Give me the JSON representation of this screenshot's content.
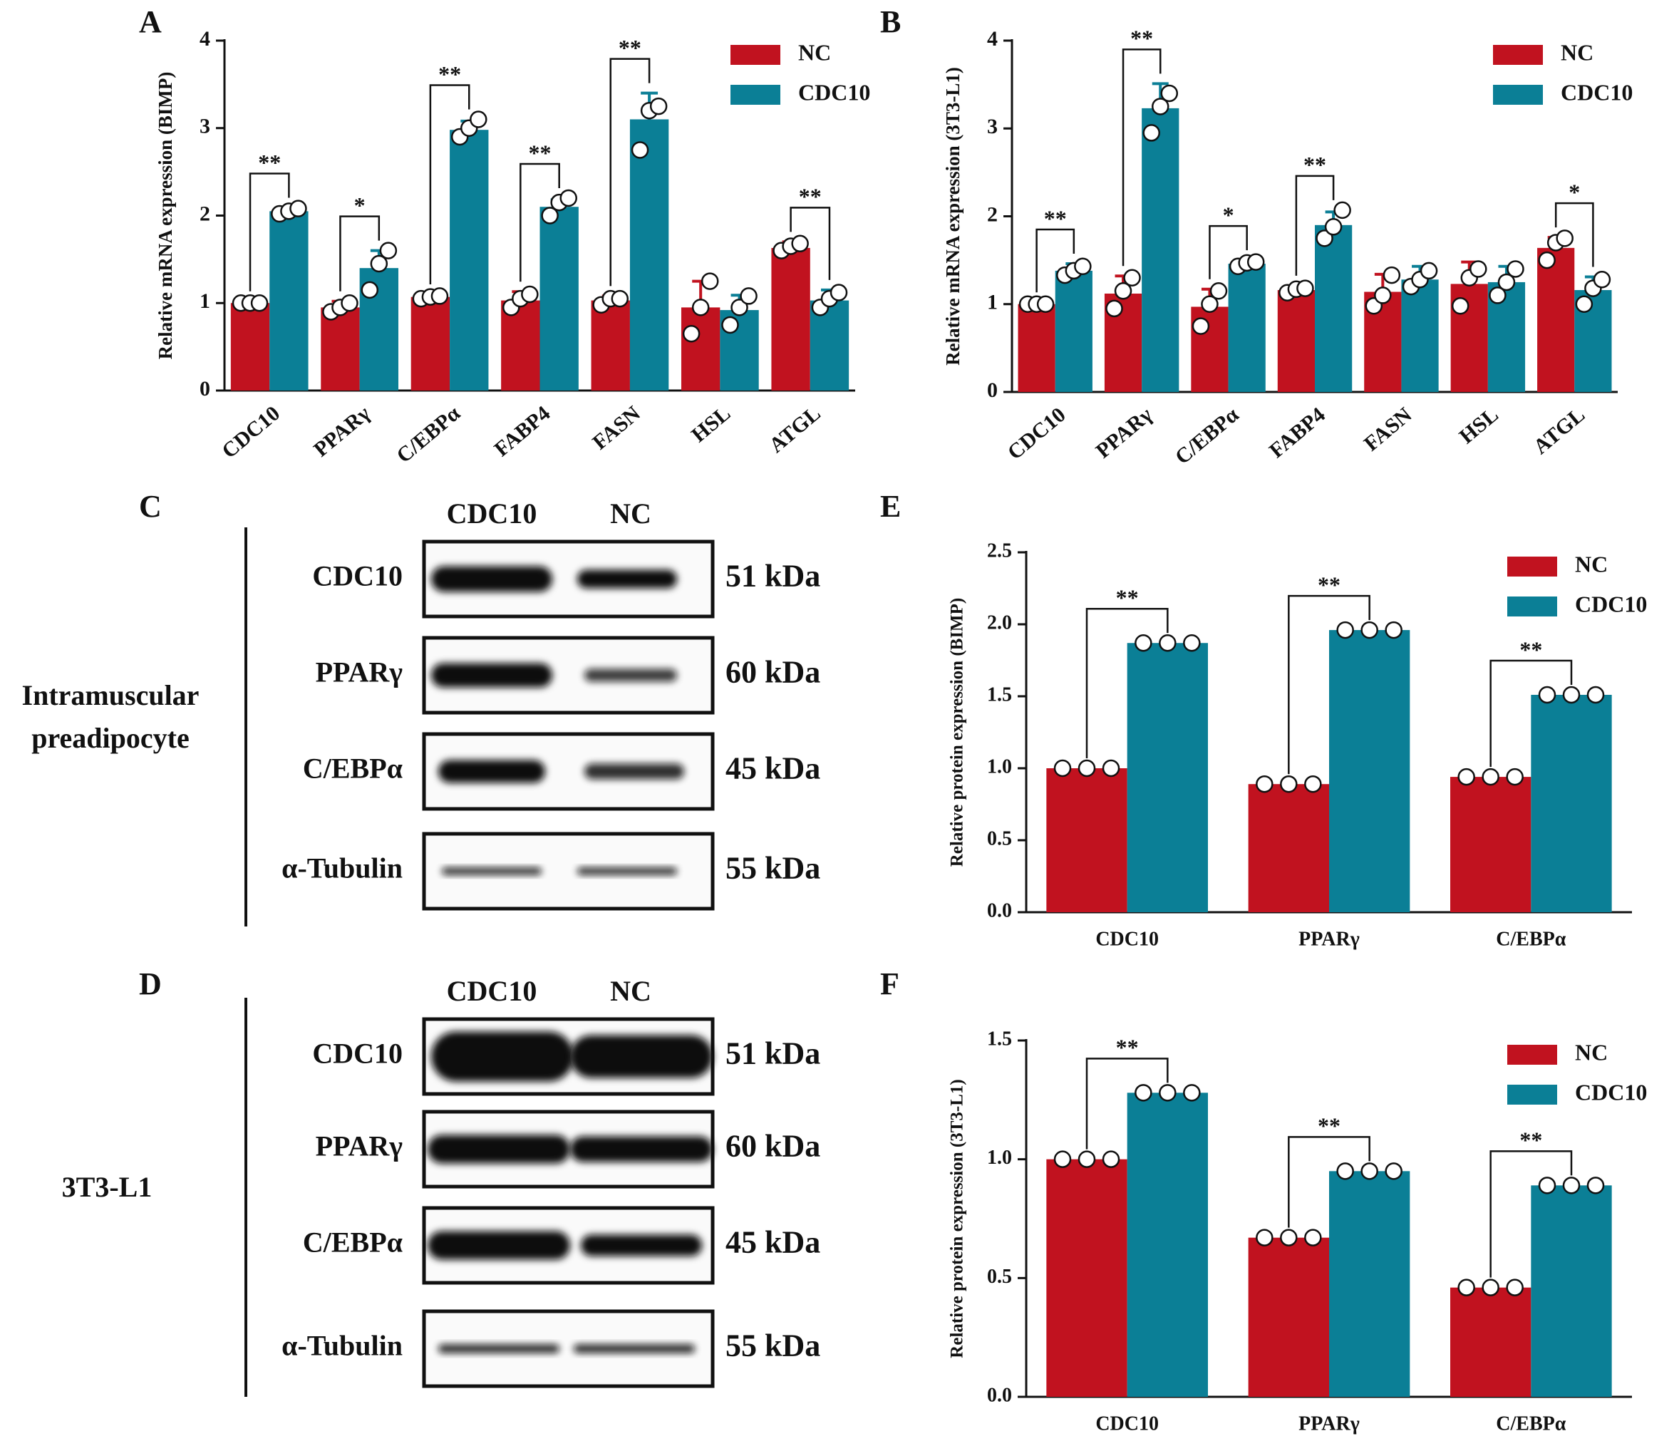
{
  "chart_data": [
    {
      "type": "bar",
      "panel": "A",
      "ylabel": "Relative mRNA  expression (BIMP)",
      "categories": [
        "CDC10",
        "PPARγ",
        "C/EBPα",
        "FABP4",
        "FASN",
        "HSL",
        "ATGL"
      ],
      "series": [
        {
          "name": "NC",
          "color": "#c1121f",
          "values": [
            1.0,
            0.95,
            1.07,
            1.03,
            1.03,
            0.95,
            1.63
          ],
          "errors": [
            0.02,
            0.07,
            0.03,
            0.1,
            0.05,
            0.3,
            0.07
          ],
          "points": [
            [
              1.0,
              1.0,
              1.0
            ],
            [
              0.9,
              0.95,
              1.0
            ],
            [
              1.05,
              1.07,
              1.08
            ],
            [
              0.95,
              1.05,
              1.1
            ],
            [
              0.98,
              1.05,
              1.05
            ],
            [
              0.65,
              0.95,
              1.25
            ],
            [
              1.6,
              1.65,
              1.68
            ]
          ]
        },
        {
          "name": "CDC10",
          "color": "#0b7f96",
          "values": [
            2.05,
            1.4,
            2.98,
            2.1,
            3.1,
            0.92,
            1.03
          ],
          "errors": [
            0.04,
            0.2,
            0.1,
            0.08,
            0.3,
            0.17,
            0.12
          ],
          "points": [
            [
              2.02,
              2.05,
              2.08
            ],
            [
              1.15,
              1.45,
              1.6
            ],
            [
              2.9,
              3.0,
              3.1
            ],
            [
              2.0,
              2.15,
              2.2
            ],
            [
              2.75,
              3.2,
              3.25
            ],
            [
              0.75,
              0.95,
              1.08
            ],
            [
              0.95,
              1.05,
              1.12
            ]
          ]
        }
      ],
      "significance": [
        "**",
        "*",
        "**",
        "**",
        "**",
        null,
        "**"
      ],
      "ylim": [
        0,
        4
      ],
      "yticks": [
        0,
        1,
        2,
        3,
        4
      ],
      "legend": "upper right"
    },
    {
      "type": "bar",
      "panel": "B",
      "ylabel": "Relative mRNA  expression (3T3-L1)",
      "categories": [
        "CDC10",
        "PPARγ",
        "C/EBPα",
        "FABP4",
        "FASN",
        "HSL",
        "ATGL"
      ],
      "series": [
        {
          "name": "NC",
          "color": "#c1121f",
          "values": [
            1.0,
            1.12,
            0.97,
            1.16,
            1.14,
            1.23,
            1.64
          ],
          "errors": [
            0.02,
            0.2,
            0.2,
            0.05,
            0.2,
            0.25,
            0.12
          ],
          "points": [
            [
              1.0,
              1.0,
              1.0
            ],
            [
              0.95,
              1.15,
              1.3
            ],
            [
              0.75,
              1.0,
              1.15
            ],
            [
              1.13,
              1.17,
              1.18
            ],
            [
              0.98,
              1.1,
              1.33
            ],
            [
              0.98,
              1.3,
              1.4
            ],
            [
              1.5,
              1.7,
              1.75
            ]
          ]
        },
        {
          "name": "CDC10",
          "color": "#0b7f96",
          "values": [
            1.38,
            3.23,
            1.46,
            1.9,
            1.28,
            1.25,
            1.16
          ],
          "errors": [
            0.08,
            0.28,
            0.04,
            0.15,
            0.15,
            0.18,
            0.15
          ],
          "points": [
            [
              1.33,
              1.38,
              1.43
            ],
            [
              2.95,
              3.25,
              3.4
            ],
            [
              1.43,
              1.47,
              1.48
            ],
            [
              1.75,
              1.88,
              2.07
            ],
            [
              1.2,
              1.28,
              1.38
            ],
            [
              1.1,
              1.25,
              1.4
            ],
            [
              1.0,
              1.18,
              1.28
            ]
          ]
        }
      ],
      "significance": [
        "**",
        "**",
        "*",
        "**",
        null,
        null,
        "*"
      ],
      "ylim": [
        0,
        4
      ],
      "yticks": [
        0,
        1,
        2,
        3,
        4
      ],
      "legend": "upper right"
    },
    {
      "type": "bar",
      "panel": "E",
      "ylabel": "Relative protein expression (BIMP)",
      "categories": [
        "CDC10",
        "PPARγ",
        "C/EBPα"
      ],
      "series": [
        {
          "name": "NC",
          "color": "#c1121f",
          "values": [
            1.0,
            0.89,
            0.94
          ],
          "points": [
            [
              1.0,
              1.0,
              1.0
            ],
            [
              0.89,
              0.89,
              0.89
            ],
            [
              0.94,
              0.94,
              0.94
            ]
          ]
        },
        {
          "name": "CDC10",
          "color": "#0b7f96",
          "values": [
            1.87,
            1.96,
            1.51
          ],
          "points": [
            [
              1.87,
              1.87,
              1.87
            ],
            [
              1.96,
              1.96,
              1.96
            ],
            [
              1.51,
              1.51,
              1.51
            ]
          ]
        }
      ],
      "significance": [
        "**",
        "**",
        "**"
      ],
      "ylim": [
        0,
        2.5
      ],
      "yticks": [
        {
          "value": 0,
          "label": "0.0"
        },
        0.5,
        {
          "value": 1,
          "label": "1.0"
        },
        1.5,
        {
          "value": 2,
          "label": "2.0"
        },
        2.5
      ],
      "legend": "upper right"
    },
    {
      "type": "bar",
      "panel": "F",
      "ylabel": "Relative protein expression (3T3-L1)",
      "categories": [
        "CDC10",
        "PPARγ",
        "C/EBPα"
      ],
      "series": [
        {
          "name": "NC",
          "color": "#c1121f",
          "values": [
            1.0,
            0.67,
            0.46
          ],
          "points": [
            [
              1.0,
              1.0,
              1.0
            ],
            [
              0.67,
              0.67,
              0.67
            ],
            [
              0.46,
              0.46,
              0.46
            ]
          ]
        },
        {
          "name": "CDC10",
          "color": "#0b7f96",
          "values": [
            1.28,
            0.95,
            0.89
          ],
          "points": [
            [
              1.28,
              1.28,
              1.28
            ],
            [
              0.95,
              0.95,
              0.95
            ],
            [
              0.89,
              0.89,
              0.89
            ]
          ]
        }
      ],
      "significance": [
        "**",
        "**",
        "**"
      ],
      "ylim": [
        0,
        1.5
      ],
      "yticks": [
        {
          "value": 0,
          "label": "0.0"
        },
        0.5,
        {
          "value": 1,
          "label": "1.0"
        },
        1.5
      ],
      "legend": "upper right"
    }
  ],
  "blots": [
    {
      "panel": "C",
      "cell_label": [
        "Intramuscular",
        "preadipocyte"
      ],
      "lanes": [
        "CDC10",
        "NC"
      ],
      "rows": [
        {
          "protein": "CDC10",
          "size": "51 kDa"
        },
        {
          "protein": "PPARγ",
          "size": "60 kDa"
        },
        {
          "protein": "C/EBPα",
          "size": "45 kDa"
        },
        {
          "protein": "α-Tubulin",
          "size": "55 kDa"
        }
      ]
    },
    {
      "panel": "D",
      "cell_label": [
        "3T3-L1"
      ],
      "lanes": [
        "CDC10",
        "NC"
      ],
      "rows": [
        {
          "protein": "CDC10",
          "size": "51 kDa"
        },
        {
          "protein": "PPARγ",
          "size": "60 kDa"
        },
        {
          "protein": "C/EBPα",
          "size": "45 kDa"
        },
        {
          "protein": "α-Tubulin",
          "size": "55 kDa"
        }
      ]
    }
  ]
}
